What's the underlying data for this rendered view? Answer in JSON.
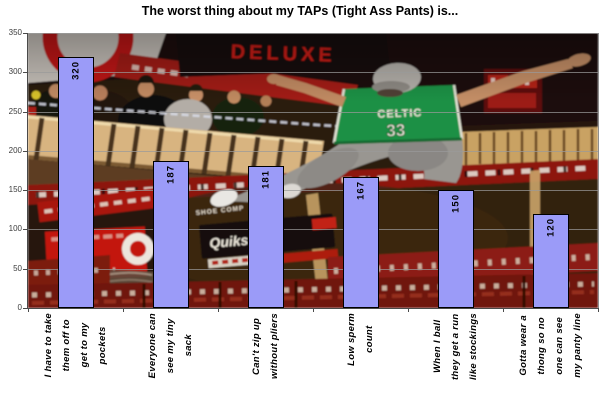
{
  "title": "The worst thing about my TAPs (Tight Ass Pants) is...",
  "chart_data": {
    "type": "bar",
    "title": "The worst thing about my TAPs (Tight Ass Pants) is...",
    "categories": [
      "I have to take\nthem off to\nget to my\npockets",
      "Everyone can\nsee my tiny\nsack",
      "Can't zip up\nwithout pliers",
      "Low sperm\ncount",
      "When I ball\nthey get a run\nlike stockings",
      "Gotta wear a\nthong so no\none can see\nmy panty line"
    ],
    "values": [
      320,
      187,
      181,
      167,
      150,
      120
    ],
    "ylim": [
      0,
      350
    ],
    "ytick_step": 50,
    "yticks": [
      0,
      50,
      100,
      150,
      200,
      250,
      300,
      350
    ],
    "grid": true,
    "legend": "none",
    "bar_color": "#9b9bf8",
    "bar_border_color": "#000000",
    "value_label_color": "#000000",
    "plot_background": "photo"
  },
  "photo": {
    "description": "man in green basketball jersey jumping spread-eagle over a dark skate-shop floor with crowd, wooden pallets and red banners",
    "deluxe_sign": "DELUXE",
    "jersey_name": "CELTIC",
    "jersey_number": "33",
    "quiksilver_banner": "Quiksilv",
    "shoe_banner": "SHOE COMP"
  }
}
